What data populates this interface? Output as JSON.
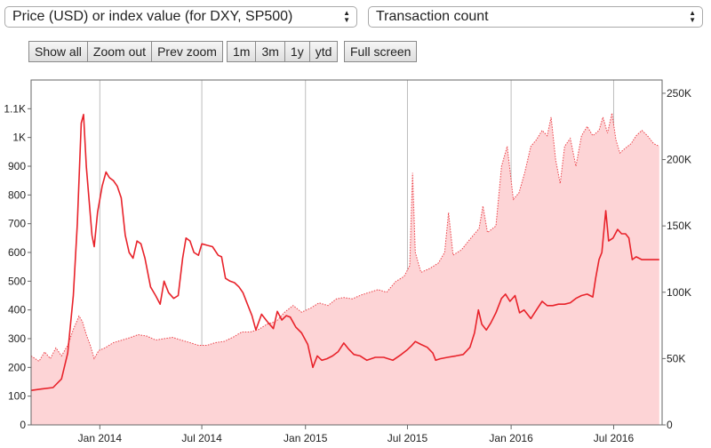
{
  "controls": {
    "left_select": "Price (USD) or index value (for DXY, SP500)",
    "right_select": "Transaction count",
    "zoom_buttons": [
      "Show all",
      "Zoom out",
      "Prev zoom"
    ],
    "range_buttons": [
      "1m",
      "3m",
      "1y",
      "ytd"
    ],
    "fullscreen_button": "Full screen"
  },
  "chart_data": {
    "type": "line",
    "x_ticks": [
      "Jan 2014",
      "Jul 2014",
      "Jan 2015",
      "Jul 2015",
      "Jan 2016",
      "Jul 2016"
    ],
    "y_left_ticks": [
      "0",
      "100",
      "200",
      "300",
      "400",
      "500",
      "600",
      "700",
      "800",
      "900",
      "1K",
      "1.1K"
    ],
    "y_right_ticks": [
      "0",
      "50K",
      "100K",
      "150K",
      "200K",
      "250K"
    ],
    "y_left_range": [
      0,
      1200
    ],
    "y_right_range": [
      0,
      260000
    ],
    "x_range": [
      "2013-09-01",
      "2016-09-25"
    ],
    "grid": "vertical",
    "series": [
      {
        "axis": "left",
        "style": "line",
        "color": "#e8222a",
        "points": [
          [
            "2013-09-01",
            120
          ],
          [
            "2013-09-20",
            125
          ],
          [
            "2013-10-10",
            130
          ],
          [
            "2013-10-25",
            160
          ],
          [
            "2013-11-05",
            250
          ],
          [
            "2013-11-15",
            450
          ],
          [
            "2013-11-22",
            700
          ],
          [
            "2013-11-29",
            1050
          ],
          [
            "2013-12-03",
            1080
          ],
          [
            "2013-12-08",
            900
          ],
          [
            "2013-12-13",
            780
          ],
          [
            "2013-12-18",
            660
          ],
          [
            "2013-12-22",
            620
          ],
          [
            "2013-12-28",
            740
          ],
          [
            "2014-01-05",
            830
          ],
          [
            "2014-01-12",
            880
          ],
          [
            "2014-01-18",
            860
          ],
          [
            "2014-01-25",
            850
          ],
          [
            "2014-02-01",
            830
          ],
          [
            "2014-02-08",
            790
          ],
          [
            "2014-02-15",
            660
          ],
          [
            "2014-02-22",
            600
          ],
          [
            "2014-03-01",
            580
          ],
          [
            "2014-03-08",
            640
          ],
          [
            "2014-03-15",
            630
          ],
          [
            "2014-03-22",
            580
          ],
          [
            "2014-04-01",
            480
          ],
          [
            "2014-04-10",
            450
          ],
          [
            "2014-04-18",
            420
          ],
          [
            "2014-04-25",
            500
          ],
          [
            "2014-05-03",
            460
          ],
          [
            "2014-05-12",
            440
          ],
          [
            "2014-05-20",
            450
          ],
          [
            "2014-05-28",
            580
          ],
          [
            "2014-06-03",
            650
          ],
          [
            "2014-06-10",
            640
          ],
          [
            "2014-06-17",
            600
          ],
          [
            "2014-06-25",
            590
          ],
          [
            "2014-07-01",
            630
          ],
          [
            "2014-07-10",
            625
          ],
          [
            "2014-07-20",
            620
          ],
          [
            "2014-07-30",
            590
          ],
          [
            "2014-08-05",
            585
          ],
          [
            "2014-08-12",
            510
          ],
          [
            "2014-08-20",
            500
          ],
          [
            "2014-08-28",
            495
          ],
          [
            "2014-09-05",
            480
          ],
          [
            "2014-09-12",
            460
          ],
          [
            "2014-09-20",
            420
          ],
          [
            "2014-09-28",
            380
          ],
          [
            "2014-10-05",
            330
          ],
          [
            "2014-10-15",
            385
          ],
          [
            "2014-10-25",
            360
          ],
          [
            "2014-11-05",
            335
          ],
          [
            "2014-11-12",
            395
          ],
          [
            "2014-11-20",
            365
          ],
          [
            "2014-11-28",
            380
          ],
          [
            "2014-12-05",
            375
          ],
          [
            "2014-12-15",
            340
          ],
          [
            "2014-12-25",
            320
          ],
          [
            "2015-01-05",
            280
          ],
          [
            "2015-01-14",
            200
          ],
          [
            "2015-01-22",
            240
          ],
          [
            "2015-01-30",
            225
          ],
          [
            "2015-02-08",
            230
          ],
          [
            "2015-02-18",
            240
          ],
          [
            "2015-02-28",
            255
          ],
          [
            "2015-03-10",
            285
          ],
          [
            "2015-03-18",
            265
          ],
          [
            "2015-03-28",
            245
          ],
          [
            "2015-04-08",
            240
          ],
          [
            "2015-04-20",
            225
          ],
          [
            "2015-05-05",
            235
          ],
          [
            "2015-05-20",
            235
          ],
          [
            "2015-06-05",
            225
          ],
          [
            "2015-06-20",
            245
          ],
          [
            "2015-06-30",
            260
          ],
          [
            "2015-07-08",
            275
          ],
          [
            "2015-07-15",
            290
          ],
          [
            "2015-07-25",
            280
          ],
          [
            "2015-08-05",
            270
          ],
          [
            "2015-08-15",
            250
          ],
          [
            "2015-08-20",
            225
          ],
          [
            "2015-08-28",
            230
          ],
          [
            "2015-09-10",
            235
          ],
          [
            "2015-09-25",
            240
          ],
          [
            "2015-10-08",
            245
          ],
          [
            "2015-10-20",
            270
          ],
          [
            "2015-10-28",
            320
          ],
          [
            "2015-11-04",
            400
          ],
          [
            "2015-11-10",
            350
          ],
          [
            "2015-11-18",
            330
          ],
          [
            "2015-11-26",
            355
          ],
          [
            "2015-12-05",
            390
          ],
          [
            "2015-12-15",
            440
          ],
          [
            "2015-12-22",
            455
          ],
          [
            "2015-12-30",
            430
          ],
          [
            "2016-01-08",
            450
          ],
          [
            "2016-01-16",
            390
          ],
          [
            "2016-01-24",
            400
          ],
          [
            "2016-02-05",
            370
          ],
          [
            "2016-02-15",
            400
          ],
          [
            "2016-02-25",
            430
          ],
          [
            "2016-03-05",
            415
          ],
          [
            "2016-03-15",
            415
          ],
          [
            "2016-03-25",
            420
          ],
          [
            "2016-04-05",
            420
          ],
          [
            "2016-04-15",
            425
          ],
          [
            "2016-04-25",
            440
          ],
          [
            "2016-05-05",
            450
          ],
          [
            "2016-05-15",
            455
          ],
          [
            "2016-05-25",
            445
          ],
          [
            "2016-05-30",
            510
          ],
          [
            "2016-06-05",
            575
          ],
          [
            "2016-06-10",
            600
          ],
          [
            "2016-06-17",
            745
          ],
          [
            "2016-06-22",
            640
          ],
          [
            "2016-06-30",
            650
          ],
          [
            "2016-07-08",
            680
          ],
          [
            "2016-07-15",
            665
          ],
          [
            "2016-07-22",
            665
          ],
          [
            "2016-07-28",
            650
          ],
          [
            "2016-08-03",
            575
          ],
          [
            "2016-08-10",
            585
          ],
          [
            "2016-08-20",
            575
          ],
          [
            "2016-08-30",
            575
          ],
          [
            "2016-09-10",
            575
          ],
          [
            "2016-09-20",
            575
          ]
        ]
      },
      {
        "axis": "right",
        "style": "dotted-area",
        "color": "#e8222a",
        "fill": "#fdd4d6",
        "points": [
          [
            "2013-09-01",
            52000
          ],
          [
            "2013-09-15",
            48000
          ],
          [
            "2013-09-25",
            55000
          ],
          [
            "2013-10-05",
            50000
          ],
          [
            "2013-10-15",
            58000
          ],
          [
            "2013-10-25",
            52000
          ],
          [
            "2013-11-05",
            60000
          ],
          [
            "2013-11-15",
            72000
          ],
          [
            "2013-11-25",
            82000
          ],
          [
            "2013-12-01",
            78000
          ],
          [
            "2013-12-08",
            68000
          ],
          [
            "2013-12-15",
            60000
          ],
          [
            "2013-12-22",
            50000
          ],
          [
            "2013-12-30",
            56000
          ],
          [
            "2014-01-10",
            58000
          ],
          [
            "2014-01-25",
            62000
          ],
          [
            "2014-02-10",
            64000
          ],
          [
            "2014-02-25",
            66000
          ],
          [
            "2014-03-10",
            68000
          ],
          [
            "2014-03-25",
            67000
          ],
          [
            "2014-04-10",
            64000
          ],
          [
            "2014-04-25",
            65000
          ],
          [
            "2014-05-10",
            66000
          ],
          [
            "2014-05-25",
            64000
          ],
          [
            "2014-06-10",
            62000
          ],
          [
            "2014-06-25",
            60000
          ],
          [
            "2014-07-10",
            60000
          ],
          [
            "2014-07-25",
            62000
          ],
          [
            "2014-08-10",
            63000
          ],
          [
            "2014-08-25",
            66000
          ],
          [
            "2014-09-10",
            70000
          ],
          [
            "2014-09-25",
            70000
          ],
          [
            "2014-10-10",
            72000
          ],
          [
            "2014-10-25",
            76000
          ],
          [
            "2014-11-10",
            78000
          ],
          [
            "2014-11-25",
            85000
          ],
          [
            "2014-12-10",
            90000
          ],
          [
            "2014-12-25",
            85000
          ],
          [
            "2015-01-10",
            88000
          ],
          [
            "2015-01-25",
            92000
          ],
          [
            "2015-02-10",
            90000
          ],
          [
            "2015-02-25",
            95000
          ],
          [
            "2015-03-10",
            96000
          ],
          [
            "2015-03-25",
            95000
          ],
          [
            "2015-04-10",
            98000
          ],
          [
            "2015-04-25",
            100000
          ],
          [
            "2015-05-10",
            102000
          ],
          [
            "2015-05-25",
            100000
          ],
          [
            "2015-06-10",
            108000
          ],
          [
            "2015-06-25",
            112000
          ],
          [
            "2015-07-05",
            120000
          ],
          [
            "2015-07-10",
            190000
          ],
          [
            "2015-07-15",
            130000
          ],
          [
            "2015-07-25",
            115000
          ],
          [
            "2015-08-10",
            118000
          ],
          [
            "2015-08-25",
            122000
          ],
          [
            "2015-09-05",
            130000
          ],
          [
            "2015-09-12",
            160000
          ],
          [
            "2015-09-20",
            128000
          ],
          [
            "2015-10-05",
            132000
          ],
          [
            "2015-10-20",
            140000
          ],
          [
            "2015-11-05",
            148000
          ],
          [
            "2015-11-12",
            165000
          ],
          [
            "2015-11-20",
            145000
          ],
          [
            "2015-12-05",
            150000
          ],
          [
            "2015-12-15",
            195000
          ],
          [
            "2015-12-25",
            210000
          ],
          [
            "2016-01-05",
            170000
          ],
          [
            "2016-01-15",
            175000
          ],
          [
            "2016-01-25",
            190000
          ],
          [
            "2016-02-05",
            210000
          ],
          [
            "2016-02-15",
            215000
          ],
          [
            "2016-02-25",
            222000
          ],
          [
            "2016-03-05",
            218000
          ],
          [
            "2016-03-12",
            232000
          ],
          [
            "2016-03-20",
            200000
          ],
          [
            "2016-03-28",
            182000
          ],
          [
            "2016-04-05",
            210000
          ],
          [
            "2016-04-15",
            216000
          ],
          [
            "2016-04-25",
            195000
          ],
          [
            "2016-05-05",
            218000
          ],
          [
            "2016-05-15",
            225000
          ],
          [
            "2016-05-25",
            218000
          ],
          [
            "2016-06-05",
            222000
          ],
          [
            "2016-06-12",
            232000
          ],
          [
            "2016-06-20",
            220000
          ],
          [
            "2016-06-28",
            235000
          ],
          [
            "2016-07-05",
            215000
          ],
          [
            "2016-07-12",
            205000
          ],
          [
            "2016-07-20",
            208000
          ],
          [
            "2016-08-01",
            212000
          ],
          [
            "2016-08-10",
            218000
          ],
          [
            "2016-08-20",
            222000
          ],
          [
            "2016-08-30",
            218000
          ],
          [
            "2016-09-10",
            212000
          ],
          [
            "2016-09-20",
            210000
          ]
        ]
      }
    ]
  }
}
